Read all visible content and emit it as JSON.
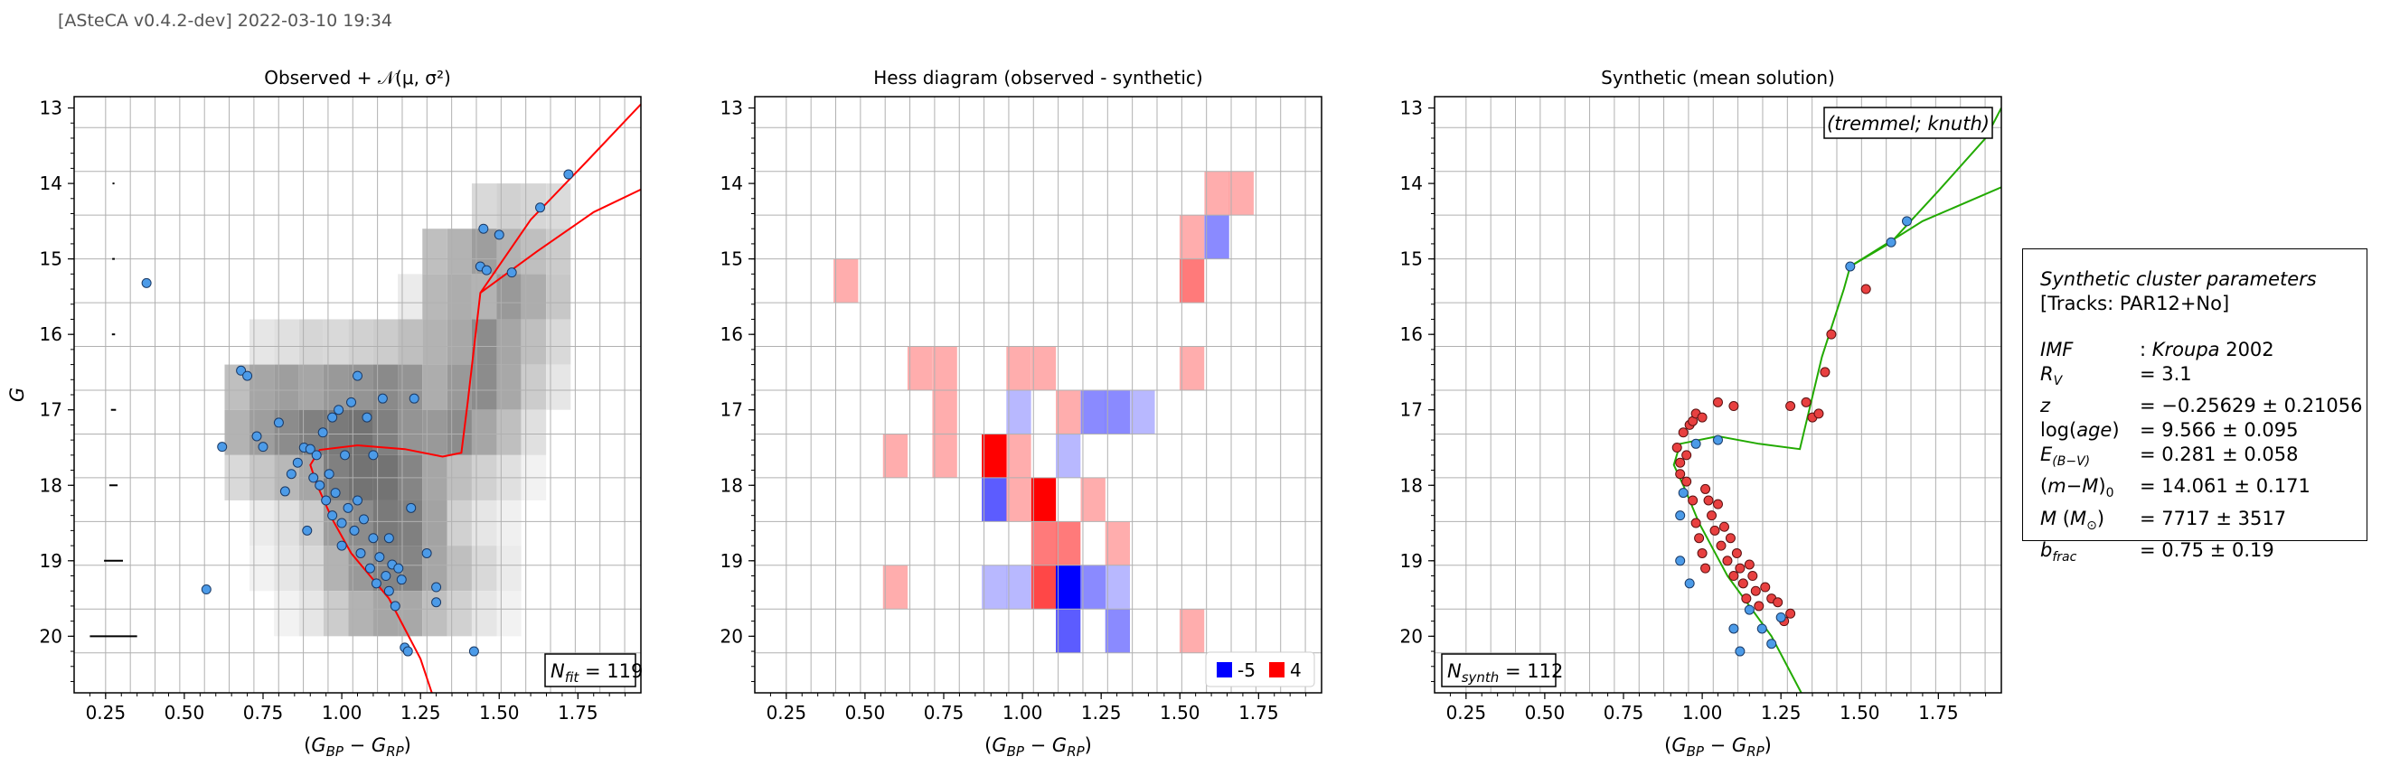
{
  "header": "[ASteCA v0.4.2-dev] 2022-03-10 19:34",
  "colors": {
    "isochrone_obs": "#ff0000",
    "isochrone_synth": "#22aa00",
    "obs_point": "#4c9be8",
    "synth_point": "#e84040",
    "hess_pos": "#ff0000",
    "hess_neg": "#0000ff"
  },
  "chart_data": [
    {
      "type": "scatter",
      "title": "Observed + 𝒩(μ, σ²)",
      "xlabel": "(G_BP − G_RP)",
      "ylabel": "G",
      "xlim": [
        0.15,
        1.95
      ],
      "ylim": [
        20.75,
        12.85
      ],
      "grid": true,
      "xticks": [
        "0.25",
        "0.50",
        "0.75",
        "1.00",
        "1.25",
        "1.50",
        "1.75"
      ],
      "yticks": [
        "13",
        "14",
        "15",
        "16",
        "17",
        "18",
        "19",
        "20"
      ],
      "annotation": "N_fit = 119",
      "background": {
        "type": "heatmap",
        "x_edges": [
          0.628,
          0.707,
          0.785,
          0.864,
          0.942,
          1.021,
          1.099,
          1.178,
          1.256,
          1.335,
          1.413,
          1.492,
          1.57,
          1.649,
          1.727
        ],
        "y_edges": [
          14.0,
          14.6,
          15.2,
          15.8,
          16.4,
          17.0,
          17.6,
          18.2,
          18.8,
          19.4,
          20.0
        ],
        "values": [
          [
            0,
            0,
            0,
            0,
            0,
            0,
            0,
            0,
            0,
            0,
            0.15,
            0.18,
            0.16,
            0.14
          ],
          [
            0,
            0,
            0,
            0,
            0,
            0,
            0,
            0,
            0.25,
            0.3,
            0.38,
            0.3,
            0.25,
            0.2
          ],
          [
            0,
            0,
            0,
            0,
            0,
            0,
            0,
            0.08,
            0.28,
            0.32,
            0.3,
            0.4,
            0.32,
            0.22
          ],
          [
            0,
            0.1,
            0.12,
            0.16,
            0.15,
            0.18,
            0.2,
            0.25,
            0.3,
            0.34,
            0.45,
            0.35,
            0.25,
            0.15
          ],
          [
            0.25,
            0.35,
            0.38,
            0.35,
            0.4,
            0.42,
            0.46,
            0.42,
            0.32,
            0.4,
            0.45,
            0.34,
            0.2,
            0.1
          ],
          [
            0.3,
            0.38,
            0.45,
            0.5,
            0.52,
            0.55,
            0.5,
            0.42,
            0.4,
            0.45,
            0.35,
            0.25,
            0.12,
            0
          ],
          [
            0.15,
            0.22,
            0.28,
            0.35,
            0.5,
            0.55,
            0.55,
            0.48,
            0.35,
            0.25,
            0.18,
            0.12,
            0.05,
            0
          ],
          [
            0,
            0.08,
            0.12,
            0.2,
            0.38,
            0.45,
            0.52,
            0.5,
            0.36,
            0.18,
            0.1,
            0.06,
            0,
            0
          ],
          [
            0,
            0.05,
            0.1,
            0.15,
            0.3,
            0.4,
            0.48,
            0.48,
            0.35,
            0.25,
            0.15,
            0.08,
            0,
            0
          ],
          [
            0,
            0,
            0.05,
            0.1,
            0.2,
            0.3,
            0.35,
            0.34,
            0.25,
            0.18,
            0.1,
            0.05,
            0,
            0
          ]
        ]
      },
      "error_bars": [
        {
          "y": 14.0,
          "half_width": 0.003
        },
        {
          "y": 15.0,
          "half_width": 0.004
        },
        {
          "y": 16.0,
          "half_width": 0.005
        },
        {
          "y": 17.0,
          "half_width": 0.008
        },
        {
          "y": 18.0,
          "half_width": 0.013
        },
        {
          "y": 19.0,
          "half_width": 0.03
        },
        {
          "y": 20.0,
          "half_width": 0.075
        }
      ],
      "points": [
        [
          0.38,
          15.32
        ],
        [
          0.57,
          19.38
        ],
        [
          0.62,
          17.49
        ],
        [
          0.68,
          16.48
        ],
        [
          0.7,
          16.55
        ],
        [
          0.73,
          17.35
        ],
        [
          0.75,
          17.49
        ],
        [
          0.8,
          17.17
        ],
        [
          0.82,
          18.08
        ],
        [
          0.84,
          17.85
        ],
        [
          0.86,
          17.7
        ],
        [
          0.88,
          17.5
        ],
        [
          0.89,
          18.6
        ],
        [
          0.9,
          17.52
        ],
        [
          0.91,
          17.9
        ],
        [
          0.92,
          17.6
        ],
        [
          0.93,
          18.0
        ],
        [
          0.94,
          17.3
        ],
        [
          0.95,
          18.2
        ],
        [
          0.96,
          17.85
        ],
        [
          0.97,
          18.4
        ],
        [
          0.97,
          17.1
        ],
        [
          0.98,
          18.1
        ],
        [
          0.99,
          17.0
        ],
        [
          1.0,
          18.5
        ],
        [
          1.0,
          18.8
        ],
        [
          1.01,
          17.6
        ],
        [
          1.02,
          18.3
        ],
        [
          1.03,
          16.9
        ],
        [
          1.04,
          18.6
        ],
        [
          1.05,
          16.55
        ],
        [
          1.05,
          18.2
        ],
        [
          1.06,
          18.9
        ],
        [
          1.07,
          18.45
        ],
        [
          1.08,
          17.1
        ],
        [
          1.09,
          19.1
        ],
        [
          1.1,
          17.6
        ],
        [
          1.1,
          18.7
        ],
        [
          1.11,
          19.3
        ],
        [
          1.12,
          18.95
        ],
        [
          1.13,
          16.85
        ],
        [
          1.14,
          19.2
        ],
        [
          1.15,
          19.4
        ],
        [
          1.15,
          18.7
        ],
        [
          1.16,
          19.05
        ],
        [
          1.17,
          19.6
        ],
        [
          1.18,
          19.1
        ],
        [
          1.19,
          19.25
        ],
        [
          1.2,
          20.15
        ],
        [
          1.21,
          20.2
        ],
        [
          1.22,
          18.3
        ],
        [
          1.23,
          16.85
        ],
        [
          1.27,
          18.9
        ],
        [
          1.3,
          19.35
        ],
        [
          1.3,
          19.55
        ],
        [
          1.42,
          20.2
        ],
        [
          1.44,
          15.1
        ],
        [
          1.45,
          14.6
        ],
        [
          1.46,
          15.15
        ],
        [
          1.5,
          14.68
        ],
        [
          1.54,
          15.18
        ],
        [
          1.63,
          14.32
        ],
        [
          1.72,
          13.88
        ]
      ],
      "isochrone": [
        [
          1.33,
          21.3
        ],
        [
          1.25,
          20.3
        ],
        [
          1.15,
          19.5
        ],
        [
          1.03,
          18.9
        ],
        [
          0.97,
          18.45
        ],
        [
          0.92,
          17.98
        ],
        [
          0.9,
          17.73
        ],
        [
          0.93,
          17.53
        ],
        [
          1.05,
          17.47
        ],
        [
          1.2,
          17.52
        ],
        [
          1.32,
          17.62
        ],
        [
          1.38,
          17.57
        ],
        [
          1.4,
          16.9
        ],
        [
          1.44,
          15.45
        ],
        [
          1.6,
          14.48
        ],
        [
          1.78,
          13.7
        ],
        [
          1.95,
          12.95
        ]
      ],
      "isochrone_branch": [
        [
          1.44,
          15.45
        ],
        [
          1.62,
          14.9
        ],
        [
          1.8,
          14.38
        ],
        [
          1.95,
          14.08
        ]
      ]
    },
    {
      "type": "heatmap",
      "title": "Hess diagram (observed - synthetic)",
      "xlabel": "(G_BP − G_RP)",
      "ylabel": "",
      "xlim": [
        0.15,
        1.95
      ],
      "ylim": [
        20.75,
        12.85
      ],
      "grid": true,
      "xticks": [
        "0.25",
        "0.50",
        "0.75",
        "1.00",
        "1.25",
        "1.50",
        "1.75"
      ],
      "yticks": [
        "13",
        "14",
        "15",
        "16",
        "17",
        "18",
        "19",
        "20"
      ],
      "bin_width": 0.0785,
      "bin_height": 0.58,
      "cells": [
        {
          "x0": 1.578,
          "y0": 13.84,
          "v": 1
        },
        {
          "x0": 1.656,
          "y0": 13.84,
          "v": 1
        },
        {
          "x0": 1.499,
          "y0": 14.42,
          "v": 1
        },
        {
          "x0": 1.578,
          "y0": 14.42,
          "v": -2
        },
        {
          "x0": 0.4,
          "y0": 15.0,
          "v": 1
        },
        {
          "x0": 1.499,
          "y0": 15.0,
          "v": 2
        },
        {
          "x0": 0.635,
          "y0": 16.16,
          "v": 1
        },
        {
          "x0": 0.714,
          "y0": 16.16,
          "v": 1
        },
        {
          "x0": 0.949,
          "y0": 16.16,
          "v": 1
        },
        {
          "x0": 1.028,
          "y0": 16.16,
          "v": 1
        },
        {
          "x0": 1.499,
          "y0": 16.16,
          "v": 1
        },
        {
          "x0": 0.714,
          "y0": 16.74,
          "v": 1
        },
        {
          "x0": 0.949,
          "y0": 16.74,
          "v": -1
        },
        {
          "x0": 1.106,
          "y0": 16.74,
          "v": 1
        },
        {
          "x0": 1.185,
          "y0": 16.74,
          "v": -2
        },
        {
          "x0": 1.263,
          "y0": 16.74,
          "v": -2
        },
        {
          "x0": 1.342,
          "y0": 16.74,
          "v": -1
        },
        {
          "x0": 0.557,
          "y0": 17.32,
          "v": 1
        },
        {
          "x0": 0.714,
          "y0": 17.32,
          "v": 1
        },
        {
          "x0": 0.871,
          "y0": 17.32,
          "v": 4
        },
        {
          "x0": 0.949,
          "y0": 17.32,
          "v": 1
        },
        {
          "x0": 1.106,
          "y0": 17.32,
          "v": -1
        },
        {
          "x0": 0.871,
          "y0": 17.9,
          "v": -3
        },
        {
          "x0": 0.949,
          "y0": 17.9,
          "v": 1
        },
        {
          "x0": 1.028,
          "y0": 17.9,
          "v": 4
        },
        {
          "x0": 1.185,
          "y0": 17.9,
          "v": 1
        },
        {
          "x0": 1.028,
          "y0": 18.48,
          "v": 2
        },
        {
          "x0": 1.106,
          "y0": 18.48,
          "v": 2
        },
        {
          "x0": 1.263,
          "y0": 18.48,
          "v": 1
        },
        {
          "x0": 0.557,
          "y0": 19.06,
          "v": 1
        },
        {
          "x0": 0.871,
          "y0": 19.06,
          "v": -1
        },
        {
          "x0": 0.949,
          "y0": 19.06,
          "v": -1
        },
        {
          "x0": 1.028,
          "y0": 19.06,
          "v": 3
        },
        {
          "x0": 1.106,
          "y0": 19.06,
          "v": -5
        },
        {
          "x0": 1.185,
          "y0": 19.06,
          "v": -2
        },
        {
          "x0": 1.263,
          "y0": 19.06,
          "v": -1
        },
        {
          "x0": 1.106,
          "y0": 19.64,
          "v": -3
        },
        {
          "x0": 1.263,
          "y0": 19.64,
          "v": -2
        },
        {
          "x0": 1.499,
          "y0": 19.64,
          "v": 1
        }
      ],
      "legend": [
        {
          "label": "-5",
          "color": "#0000ff"
        },
        {
          "label": "4",
          "color": "#ff0000"
        }
      ],
      "legend_position": "lower-right"
    },
    {
      "type": "scatter",
      "title": "Synthetic (mean solution)",
      "xlabel": "(G_BP − G_RP)",
      "ylabel": "",
      "xlim": [
        0.15,
        1.95
      ],
      "ylim": [
        20.75,
        12.85
      ],
      "grid": true,
      "xticks": [
        "0.25",
        "0.50",
        "0.75",
        "1.00",
        "1.25",
        "1.50",
        "1.75"
      ],
      "yticks": [
        "13",
        "14",
        "15",
        "16",
        "17",
        "18",
        "19",
        "20"
      ],
      "annotation": "N_synth = 112",
      "tracks_label": "(tremmel; knuth)",
      "points_single": [
        [
          0.93,
          18.4
        ],
        [
          0.93,
          19.0
        ],
        [
          0.94,
          18.1
        ],
        [
          0.96,
          19.3
        ],
        [
          0.98,
          17.45
        ],
        [
          1.05,
          17.4
        ],
        [
          1.1,
          19.9
        ],
        [
          1.12,
          20.2
        ],
        [
          1.15,
          19.65
        ],
        [
          1.19,
          19.9
        ],
        [
          1.22,
          20.1
        ],
        [
          1.25,
          19.75
        ],
        [
          1.47,
          15.1
        ],
        [
          1.6,
          14.78
        ],
        [
          1.65,
          14.5
        ]
      ],
      "points_binary": [
        [
          0.92,
          17.5
        ],
        [
          0.93,
          17.7
        ],
        [
          0.93,
          17.85
        ],
        [
          0.94,
          17.3
        ],
        [
          0.95,
          17.6
        ],
        [
          0.95,
          17.95
        ],
        [
          0.96,
          17.2
        ],
        [
          0.97,
          17.15
        ],
        [
          0.97,
          18.2
        ],
        [
          0.98,
          17.05
        ],
        [
          0.98,
          18.5
        ],
        [
          0.99,
          18.7
        ],
        [
          1.0,
          17.1
        ],
        [
          1.0,
          18.9
        ],
        [
          1.01,
          18.05
        ],
        [
          1.01,
          19.1
        ],
        [
          1.02,
          18.2
        ],
        [
          1.03,
          18.4
        ],
        [
          1.04,
          18.6
        ],
        [
          1.05,
          16.9
        ],
        [
          1.05,
          18.25
        ],
        [
          1.06,
          18.8
        ],
        [
          1.07,
          18.55
        ],
        [
          1.08,
          19.0
        ],
        [
          1.09,
          18.7
        ],
        [
          1.1,
          19.2
        ],
        [
          1.1,
          16.95
        ],
        [
          1.11,
          18.9
        ],
        [
          1.12,
          19.1
        ],
        [
          1.13,
          19.3
        ],
        [
          1.14,
          19.5
        ],
        [
          1.15,
          19.05
        ],
        [
          1.16,
          19.2
        ],
        [
          1.17,
          19.4
        ],
        [
          1.18,
          19.6
        ],
        [
          1.2,
          19.35
        ],
        [
          1.22,
          19.5
        ],
        [
          1.24,
          19.55
        ],
        [
          1.26,
          19.8
        ],
        [
          1.28,
          16.95
        ],
        [
          1.28,
          19.7
        ],
        [
          1.33,
          16.9
        ],
        [
          1.35,
          17.1
        ],
        [
          1.37,
          17.05
        ],
        [
          1.39,
          16.5
        ],
        [
          1.41,
          16.0
        ],
        [
          1.52,
          15.4
        ]
      ],
      "isochrone": [
        [
          1.34,
          20.95
        ],
        [
          1.22,
          20.0
        ],
        [
          1.08,
          19.2
        ],
        [
          0.99,
          18.5
        ],
        [
          0.94,
          18.0
        ],
        [
          0.91,
          17.73
        ],
        [
          0.93,
          17.45
        ],
        [
          1.05,
          17.35
        ],
        [
          1.18,
          17.45
        ],
        [
          1.31,
          17.52
        ],
        [
          1.34,
          17.0
        ],
        [
          1.38,
          16.3
        ],
        [
          1.45,
          15.4
        ],
        [
          1.47,
          15.1
        ],
        [
          1.6,
          14.78
        ],
        [
          1.75,
          14.1
        ],
        [
          1.9,
          13.4
        ],
        [
          1.95,
          13.0
        ]
      ],
      "isochrone_branch": [
        [
          1.47,
          15.1
        ],
        [
          1.7,
          14.5
        ],
        [
          1.95,
          14.05
        ]
      ]
    }
  ],
  "params": {
    "heading": "Synthetic cluster parameters",
    "tracks": "[Tracks: PAR12+No]",
    "rows": [
      {
        "key": "IMF",
        "val": ": Kroupa 2002"
      },
      {
        "key": "R_V",
        "val": "= 3.1"
      },
      {
        "key": "z",
        "val": "= −0.25629 ± 0.21056"
      },
      {
        "key": "log(age)",
        "val": "= 9.566 ± 0.095"
      },
      {
        "key": "E_(B−V)",
        "val": "= 0.281 ± 0.058"
      },
      {
        "key": "(m−M)_0",
        "val": "= 14.061 ± 0.171"
      },
      {
        "key": "M (M_⊙)",
        "val": "= 7717 ± 3517"
      },
      {
        "key": "b_frac",
        "val": "= 0.75 ± 0.19"
      }
    ]
  }
}
